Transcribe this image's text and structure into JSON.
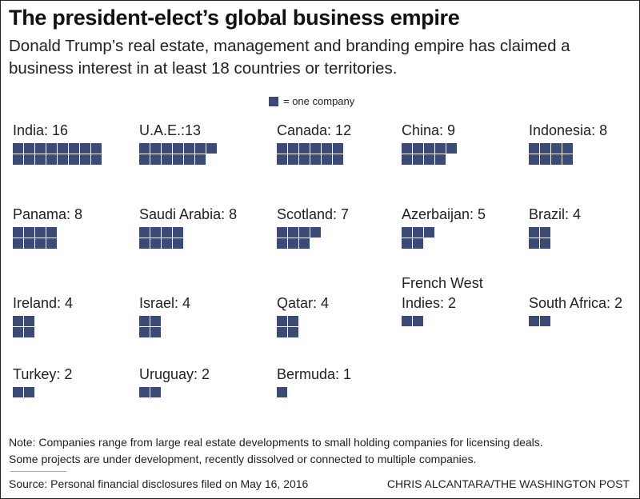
{
  "header": {
    "title": "The president-elect’s global business empire",
    "subtitle": "Donald Trump’s real estate, management and branding empire has claimed a business interest in at least 18 countries or territories."
  },
  "legend": {
    "label": "= one company",
    "color": "#3b4b75"
  },
  "chart_data": {
    "type": "waffle",
    "title": "The president-elect’s global business empire",
    "unit": "one company",
    "categories": [
      "India",
      "U.A.E.",
      "Canada",
      "China",
      "Indonesia",
      "Panama",
      "Saudi Arabia",
      "Scotland",
      "Azerbaijan",
      "Brazil",
      "Ireland",
      "Israel",
      "Qatar",
      "French West Indies",
      "South Africa",
      "Turkey",
      "Uruguay",
      "Bermuda"
    ],
    "values": [
      16,
      13,
      12,
      9,
      8,
      8,
      8,
      7,
      5,
      4,
      4,
      4,
      4,
      2,
      2,
      2,
      2,
      1
    ],
    "labels": [
      "India: 16",
      "U.A.E.:13",
      "Canada: 12",
      "China: 9",
      "Indonesia: 8",
      "Panama: 8",
      "Saudi Arabia: 8",
      "Scotland: 7",
      "Azerbaijan: 5",
      "Brazil: 4",
      "Ireland: 4",
      "Israel: 4",
      "Qatar: 4",
      "French West Indies: 2",
      "South Africa: 2",
      "Turkey: 2",
      "Uruguay: 2",
      "Bermuda: 1"
    ]
  },
  "footer": {
    "note_line1": "Note: Companies range from large real estate developments to small holding companies for licensing deals.",
    "note_line2": "Some projects are under development, recently dissolved or connected to multiple companies.",
    "source": "Source: Personal financial disclosures filed on May 16, 2016",
    "credit": "CHRIS ALCANTARA/THE WASHINGTON POST"
  }
}
